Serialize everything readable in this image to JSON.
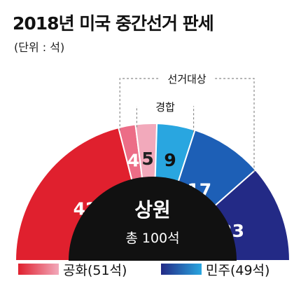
{
  "title": "2018년 미국 중간선거 판세",
  "unit_note": "(단위 : 석)",
  "chart_data": {
    "type": "pie",
    "subtype": "semicircle-donut",
    "segments": [
      {
        "party": "공화",
        "value": 42,
        "group": "non-contested",
        "label": "42",
        "color": "#e0202e"
      },
      {
        "party": "공화",
        "value": 4,
        "group": "contested",
        "label": "4",
        "color": "#ec6d87"
      },
      {
        "party": "공화",
        "value": 5,
        "group": "contested",
        "label": "5",
        "color": "#f2a9bb"
      },
      {
        "party": "민주",
        "value": 9,
        "group": "contested",
        "label": "9",
        "color": "#29a6e0"
      },
      {
        "party": "민주",
        "value": 17,
        "group": "up-for-election",
        "label": "17",
        "color": "#1d5fb6"
      },
      {
        "party": "민주",
        "value": 23,
        "group": "non-contested",
        "label": "23",
        "color": "#232a86"
      }
    ],
    "center": {
      "title": "상원",
      "subtitle": "총 100석"
    },
    "brackets": [
      {
        "label": "선거대상"
      },
      {
        "label": "경합"
      }
    ],
    "legend": [
      {
        "label": "공화(51석)",
        "gradient": [
          "#e0202e",
          "#f2a9bb"
        ]
      },
      {
        "label": "민주(49석)",
        "gradient": [
          "#232a86",
          "#29a6e0"
        ]
      }
    ],
    "colors": {
      "center_bg": "#111111",
      "center_text": "#ffffff",
      "bracket_line": "#888888"
    }
  }
}
